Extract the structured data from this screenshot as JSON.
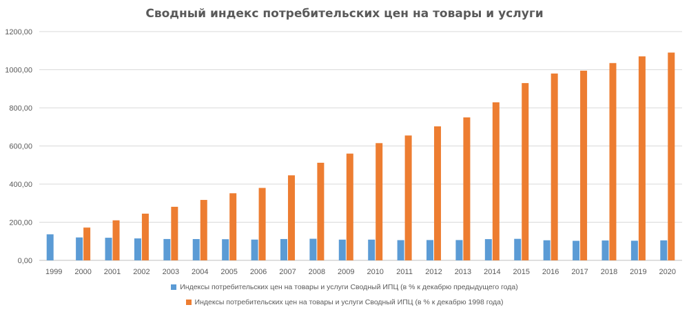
{
  "chart_data": {
    "type": "bar",
    "title": "Сводный индекс потребительских цен на товары и услуги",
    "xlabel": "",
    "ylabel": "",
    "ylim": [
      0,
      1200
    ],
    "yticks": [
      "0,00",
      "200,00",
      "400,00",
      "600,00",
      "800,00",
      "1000,00",
      "1200,00"
    ],
    "grid": true,
    "legend_position": "bottom",
    "categories": [
      "1999",
      "2000",
      "2001",
      "2002",
      "2003",
      "2004",
      "2005",
      "2006",
      "2007",
      "2008",
      "2009",
      "2010",
      "2011",
      "2012",
      "2013",
      "2014",
      "2015",
      "2016",
      "2017",
      "2018",
      "2019",
      "2020"
    ],
    "series": [
      {
        "name": "Индексы потребительских цен на товары и услуги Сводный ИПЦ (в % к декабрю предыдущего года)",
        "color": "#5B9BD5",
        "values": [
          136.5,
          120.2,
          118.6,
          115.1,
          112.0,
          111.7,
          110.9,
          109.0,
          111.9,
          113.3,
          108.8,
          108.8,
          106.1,
          106.6,
          106.5,
          111.4,
          112.9,
          105.4,
          102.5,
          104.3,
          103.0,
          104.9
        ]
      },
      {
        "name": "Индексы потребительских цен на товары и услуги Сводный ИПЦ (в % к декабрю 1998 года)",
        "color": "#ED7D31",
        "values": [
          null,
          172,
          210,
          245,
          281,
          317,
          352,
          380,
          446,
          512,
          560,
          615,
          655,
          703,
          750,
          829,
          930,
          980,
          995,
          1035,
          1070,
          1090
        ]
      }
    ]
  }
}
